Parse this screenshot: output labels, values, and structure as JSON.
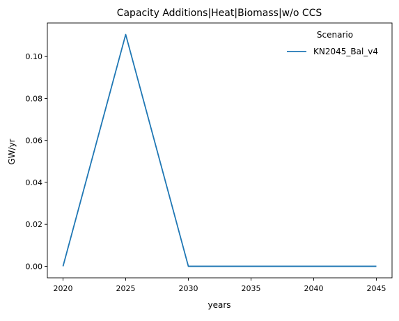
{
  "chart_data": {
    "type": "line",
    "title": "Capacity Additions|Heat|Biomass|w/o CCS",
    "xlabel": "years",
    "ylabel": "GW/yr",
    "x": [
      2020,
      2025,
      2030,
      2035,
      2040,
      2045
    ],
    "series": [
      {
        "name": "KN2045_Bal_v4",
        "color": "#1f77b4",
        "values": [
          0.0,
          0.1105,
          0.0,
          0.0,
          0.0,
          0.0
        ]
      }
    ],
    "xticks": [
      2020,
      2025,
      2030,
      2035,
      2040,
      2045
    ],
    "xtick_labels": [
      "2020",
      "2025",
      "2030",
      "2035",
      "2040",
      "2045"
    ],
    "yticks": [
      0.0,
      0.02,
      0.04,
      0.06,
      0.08,
      0.1
    ],
    "ytick_labels": [
      "0.00",
      "0.02",
      "0.04",
      "0.06",
      "0.08",
      "0.10"
    ],
    "xlim": [
      2018.75,
      2046.25
    ],
    "ylim": [
      -0.0055,
      0.116
    ],
    "grid": false,
    "legend": {
      "title": "Scenario",
      "placement": "top-right"
    }
  }
}
